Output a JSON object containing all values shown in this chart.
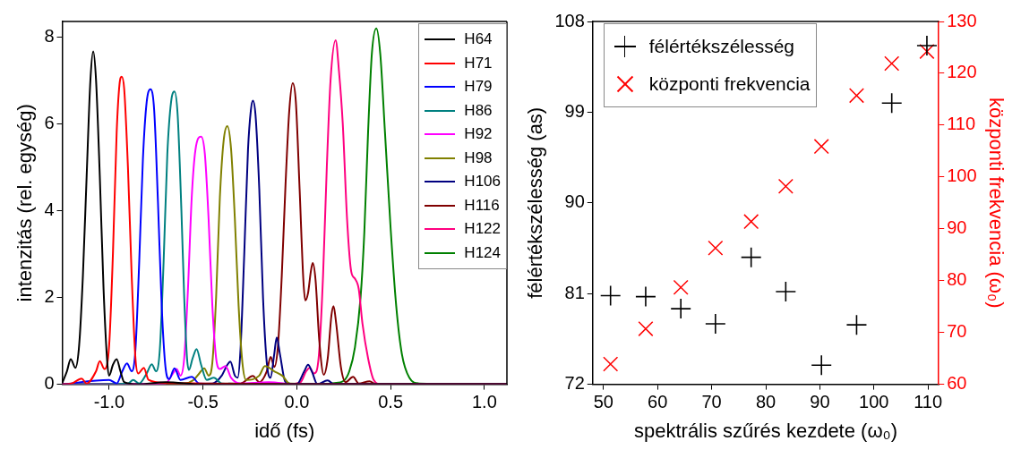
{
  "chart_data": [
    {
      "type": "line",
      "xlabel": "idő (fs)",
      "ylabel": "intenzitás (rel. egység)",
      "xlim": [
        -1.25,
        1.12
      ],
      "xticks": [
        {
          "value": -1,
          "label": "-1.0"
        },
        {
          "value": -0.5,
          "label": "-0.5"
        },
        {
          "value": 0,
          "label": "0.0"
        },
        {
          "value": 0.5,
          "label": "0.5"
        },
        {
          "value": 1,
          "label": "1.0"
        }
      ],
      "ylim": [
        0,
        8.35
      ],
      "yticks": [
        0,
        2,
        4,
        6,
        8
      ],
      "legend": "top right",
      "series": [
        {
          "name": "H64",
          "color": "#000000",
          "x": [
            -1.25,
            -1.225,
            -1.205,
            -1.18,
            -1.16,
            -1.14,
            -1.12,
            -1.1,
            -1.085,
            -1.07,
            -1.05,
            -1.03,
            -1.01,
            -1.0,
            -0.98,
            -0.96,
            -0.94,
            -0.92,
            -0.85,
            -0.7,
            -0.5,
            0,
            1.12
          ],
          "values": [
            0.03,
            0.3,
            0.58,
            0.38,
            0.9,
            2.5,
            4.8,
            7.0,
            7.66,
            7.0,
            4.8,
            2.2,
            0.5,
            0.2,
            0.45,
            0.58,
            0.3,
            0.05,
            0,
            0.05,
            0,
            0,
            0
          ]
        },
        {
          "name": "H71",
          "color": "#ff0000",
          "x": [
            -1.25,
            -1.2,
            -1.147,
            -1.12,
            -1.07,
            -1.05,
            -1.025,
            -1.0,
            -0.98,
            -0.96,
            -0.945,
            -0.933,
            -0.92,
            -0.9,
            -0.88,
            -0.86,
            -0.845,
            -0.815,
            -0.79,
            -0.7,
            -0.5,
            0,
            1.12
          ],
          "values": [
            0,
            0.02,
            0.13,
            0.02,
            0.3,
            0.53,
            0.35,
            0.9,
            3.0,
            5.8,
            6.9,
            7.08,
            6.8,
            5.0,
            2.5,
            0.6,
            0.25,
            0.38,
            0.1,
            0.03,
            0.02,
            0,
            0
          ]
        },
        {
          "name": "H79",
          "color": "#0000ff",
          "x": [
            -1.25,
            -1.0,
            -0.96,
            -0.93,
            -0.905,
            -0.88,
            -0.86,
            -0.84,
            -0.82,
            -0.8,
            -0.78,
            -0.76,
            -0.74,
            -0.72,
            -0.7,
            -0.68,
            -0.652,
            -0.62,
            -0.56,
            -0.52,
            0,
            1.12
          ],
          "values": [
            0,
            0.1,
            0.02,
            0.3,
            0.48,
            0.3,
            0.8,
            2.8,
            5.2,
            6.5,
            6.79,
            6.3,
            4.2,
            1.8,
            0.4,
            0.12,
            0.37,
            0.1,
            0.17,
            0.02,
            0,
            0
          ]
        },
        {
          "name": "H86",
          "color": "#008080",
          "x": [
            -1.25,
            -0.9,
            -0.872,
            -0.84,
            -0.8,
            -0.773,
            -0.75,
            -0.73,
            -0.71,
            -0.69,
            -0.67,
            -0.652,
            -0.635,
            -0.615,
            -0.6,
            -0.585,
            -0.575,
            -0.555,
            -0.534,
            -0.51,
            -0.48,
            -0.442,
            -0.4,
            0,
            1.12
          ],
          "values": [
            0,
            0.02,
            0.1,
            0.02,
            0.25,
            0.46,
            0.3,
            0.8,
            2.8,
            5.3,
            6.5,
            6.74,
            6.2,
            4.0,
            2.0,
            0.6,
            0.33,
            0.6,
            0.81,
            0.45,
            0.1,
            0.15,
            0.02,
            0,
            0
          ]
        },
        {
          "name": "H92",
          "color": "#ff00ff",
          "x": [
            -1.25,
            -0.7,
            -0.66,
            -0.641,
            -0.62,
            -0.6,
            -0.58,
            -0.56,
            -0.54,
            -0.51,
            -0.49,
            -0.47,
            -0.45,
            -0.43,
            -0.41,
            -0.38,
            -0.35,
            -0.3,
            -0.15,
            0,
            1.12
          ],
          "values": [
            0,
            0.02,
            0.25,
            0.35,
            0.2,
            0.6,
            2.2,
            4.3,
            5.4,
            5.7,
            5.3,
            3.8,
            1.8,
            0.6,
            0.35,
            0.42,
            0.15,
            0.02,
            0.05,
            0,
            0
          ]
        },
        {
          "name": "H98",
          "color": "#808000",
          "x": [
            -1.25,
            -0.6,
            -0.55,
            -0.52,
            -0.493,
            -0.47,
            -0.45,
            -0.43,
            -0.41,
            -0.39,
            -0.37,
            -0.35,
            -0.33,
            -0.31,
            -0.29,
            -0.27,
            -0.2,
            -0.17,
            -0.12,
            -0.075,
            -0.04,
            0.5,
            1.12
          ],
          "values": [
            0,
            0.02,
            0.1,
            0.25,
            0.37,
            0.2,
            0.5,
            2.0,
            4.3,
            5.6,
            5.94,
            5.4,
            3.8,
            1.8,
            0.5,
            0.1,
            0.2,
            0.42,
            0.3,
            0.19,
            0.02,
            0,
            0
          ]
        },
        {
          "name": "H106",
          "color": "#000080",
          "x": [
            -1.25,
            -0.45,
            -0.4,
            -0.37,
            -0.354,
            -0.33,
            -0.315,
            -0.3,
            -0.28,
            -0.26,
            -0.245,
            -0.234,
            -0.22,
            -0.2,
            -0.18,
            -0.16,
            -0.14,
            -0.12,
            -0.107,
            -0.09,
            -0.06,
            0,
            0.04,
            0.06,
            0.08,
            0.11,
            0.164,
            0.2,
            1.12
          ],
          "values": [
            0,
            0.02,
            0.2,
            0.45,
            0.52,
            0.2,
            0.15,
            0.8,
            3.0,
            5.4,
            6.3,
            6.53,
            6.2,
            4.5,
            2.0,
            0.5,
            0.15,
            0.7,
            1.08,
            0.7,
            0.05,
            0,
            0.3,
            0.45,
            0.3,
            0,
            0.09,
            0,
            0
          ]
        },
        {
          "name": "H116",
          "color": "#800000",
          "x": [
            -1.25,
            -0.3,
            -0.234,
            -0.2,
            -0.16,
            -0.139,
            -0.12,
            -0.1,
            -0.08,
            -0.06,
            -0.04,
            -0.022,
            -0.005,
            0.015,
            0.035,
            0.045,
            0.06,
            0.075,
            0.085,
            0.1,
            0.12,
            0.144,
            0.165,
            0.185,
            0.196,
            0.21,
            0.235,
            0.26,
            0.3,
            0.33,
            0.388,
            0.42,
            1.12
          ],
          "values": [
            0,
            0.02,
            0.19,
            0.05,
            0.3,
            0.63,
            0.4,
            0.9,
            2.5,
            4.6,
            6.3,
            6.93,
            6.5,
            4.5,
            2.4,
            1.93,
            2.1,
            2.6,
            2.79,
            2.4,
            1.0,
            0.22,
            0.6,
            1.6,
            1.8,
            1.4,
            0.4,
            0.05,
            0.17,
            0.02,
            0.07,
            0,
            0
          ]
        },
        {
          "name": "H122",
          "color": "#ff0080",
          "x": [
            -1.25,
            -0.05,
            0.02,
            0.05,
            0.069,
            0.09,
            0.105,
            0.12,
            0.14,
            0.16,
            0.18,
            0.207,
            0.225,
            0.245,
            0.268,
            0.29,
            0.31,
            0.33,
            0.35,
            0.38,
            0.41,
            0.45,
            1.12
          ],
          "values": [
            0,
            0,
            0.05,
            0.3,
            0.38,
            0.25,
            0.3,
            0.8,
            2.5,
            5.0,
            7.0,
            7.92,
            7.2,
            6.0,
            3.8,
            2.6,
            2.43,
            2.2,
            1.4,
            0.6,
            0.1,
            0,
            0
          ]
        },
        {
          "name": "H124",
          "color": "#008000",
          "x": [
            -1.25,
            0.1,
            0.2,
            0.25,
            0.28,
            0.31,
            0.34,
            0.36,
            0.38,
            0.4,
            0.424,
            0.445,
            0.47,
            0.5,
            0.53,
            0.56,
            0.6,
            0.65,
            1.12
          ],
          "values": [
            0,
            0,
            0.03,
            0.08,
            0.3,
            0.85,
            2.0,
            3.5,
            5.8,
            7.6,
            8.19,
            7.6,
            5.8,
            3.6,
            1.8,
            0.7,
            0.15,
            0.02,
            0
          ]
        }
      ]
    },
    {
      "type": "scatter",
      "xlabel": "spektrális szűrés kezdete (ω₀)",
      "ylabel": "félértékszélesség (as)",
      "y2label": "központi frekvencia (ω₀)",
      "x": [
        51.3,
        57.8,
        64.3,
        70.7,
        77.3,
        83.7,
        90.3,
        96.8,
        103.3,
        109.8
      ],
      "xlim": [
        48,
        112
      ],
      "xticks": [
        50,
        60,
        70,
        80,
        90,
        100,
        110
      ],
      "ylim": [
        72,
        108
      ],
      "yticks": [
        72,
        81,
        90,
        99,
        108
      ],
      "y2lim": [
        60,
        130
      ],
      "y2ticks": [
        60,
        70,
        80,
        90,
        100,
        110,
        120,
        130
      ],
      "legend": "top left",
      "series": [
        {
          "name": "félértékszélesség",
          "color": "#000000",
          "marker": "cross",
          "values": [
            80.8,
            80.7,
            79.5,
            78.0,
            84.6,
            81.2,
            73.9,
            77.9,
            99.9,
            105.6
          ]
        },
        {
          "name": "központi frekvencia",
          "color": "#ff0000",
          "marker": "cross",
          "axis": "y2",
          "values": [
            63.9,
            70.7,
            78.7,
            86.3,
            91.4,
            98.2,
            105.9,
            115.7,
            121.9,
            124.2
          ]
        }
      ]
    }
  ]
}
